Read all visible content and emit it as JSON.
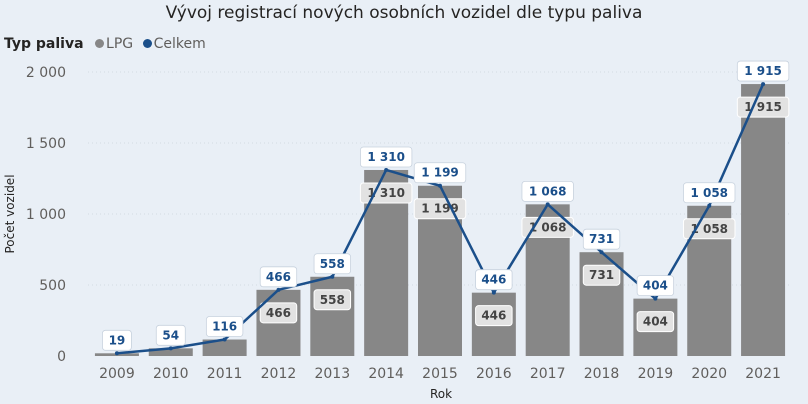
{
  "chart_data": {
    "type": "bar+line",
    "title": "Vývoj registrací nových osobních vozidel dle typu paliva",
    "legend": {
      "title": "Typ paliva",
      "position": "top-left",
      "items": [
        {
          "label": "LPG",
          "color": "#878787"
        },
        {
          "label": "Celkem",
          "color": "#1b4f8a"
        }
      ]
    },
    "xlabel": "Rok",
    "ylabel": "Počet vozidel",
    "ylim": [
      0,
      2000
    ],
    "yticks": [
      0,
      500,
      1000,
      1500,
      2000
    ],
    "ytick_labels": [
      "0",
      "500",
      "1 000",
      "1 500",
      "2 000"
    ],
    "categories": [
      "2009",
      "2010",
      "2011",
      "2012",
      "2013",
      "2014",
      "2015",
      "2016",
      "2017",
      "2018",
      "2019",
      "2020",
      "2021"
    ],
    "series": [
      {
        "name": "LPG",
        "kind": "bar",
        "color": "#878787",
        "values": [
          19,
          54,
          116,
          466,
          558,
          1310,
          1199,
          446,
          1068,
          731,
          404,
          1058,
          1915
        ],
        "labels": [
          "",
          "",
          "",
          "466",
          "558",
          "1 310",
          "1 199",
          "446",
          "1 068",
          "731",
          "404",
          "1 058",
          "1 915"
        ]
      },
      {
        "name": "Celkem",
        "kind": "line",
        "color": "#1b4f8a",
        "values": [
          19,
          54,
          116,
          466,
          558,
          1310,
          1199,
          446,
          1068,
          731,
          404,
          1058,
          1915
        ],
        "labels": [
          "19",
          "54",
          "116",
          "466",
          "558",
          "1 310",
          "1 199",
          "446",
          "1 068",
          "731",
          "404",
          "1 058",
          "1 915"
        ]
      }
    ]
  }
}
